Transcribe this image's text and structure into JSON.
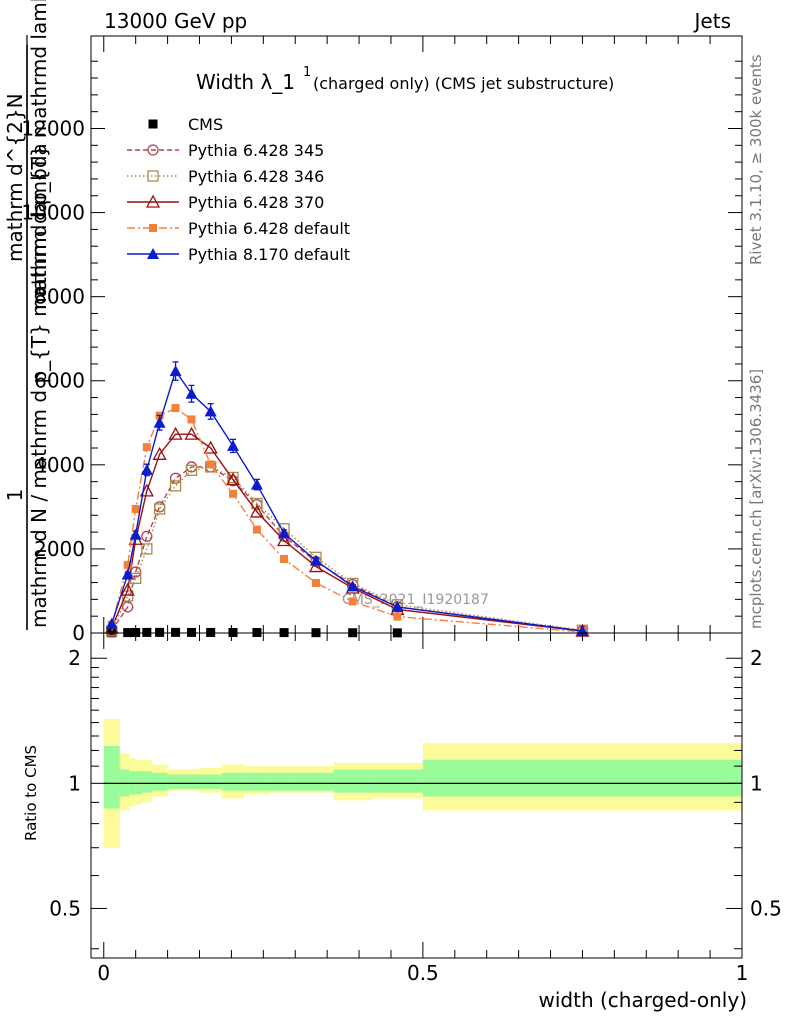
{
  "header": {
    "left": "13000 GeV pp",
    "right": "Jets"
  },
  "side": {
    "rivet": "Rivet 3.1.10, ≥ 300k events",
    "mcplots": "mcplots.cern.ch [arXiv:1306.3436]"
  },
  "ylabel_main": {
    "one": "1",
    "den": "mathrm d N / mathrm d p_{T} mathrmd lambda",
    "num": "mathrm d^{2}N",
    "num2": "mathrm d p_{T} mathrmd lambda"
  },
  "colors": {
    "cms": "#000000",
    "py345": "#b5424a",
    "py346": "#a88b4e",
    "py370": "#9b0d10",
    "pydef": "#f4803a",
    "py8": "#0a1ccc",
    "band_inner": "#99fb99",
    "band_outer": "#fbfb99"
  },
  "chart_data": [
    {
      "type": "line",
      "title": "Width λ_1",
      "title_sup": "1",
      "title_suffix": "(charged only) (CMS jet substructure)",
      "watermark": "CMS_2021_I1920187",
      "xlim": [
        -0.02,
        1.0
      ],
      "ylim": [
        0,
        14200
      ],
      "ticks_y": [
        0,
        2000,
        4000,
        6000,
        8000,
        10000,
        12000
      ],
      "ticks_y_labels": [
        "0",
        "2000",
        "4000",
        "6000",
        "8000",
        "10000",
        "12000"
      ],
      "series": [
        {
          "name": "CMS",
          "key": "cms",
          "marker": "square-filled",
          "line": "none",
          "x": [
            0.0125,
            0.0375,
            0.05,
            0.0675,
            0.0875,
            0.1125,
            0.1375,
            0.1675,
            0.2025,
            0.24,
            0.2825,
            0.3325,
            0.39,
            0.46
          ],
          "y": [
            5,
            10,
            12,
            14,
            15,
            15,
            14,
            13,
            12,
            11,
            10,
            8,
            6,
            3
          ]
        },
        {
          "name": "Pythia 6.428 345",
          "key": "py345",
          "marker": "circle-open",
          "line": "dashed",
          "x": [
            0.0125,
            0.0375,
            0.05,
            0.0675,
            0.0875,
            0.1125,
            0.1375,
            0.1675,
            0.2025,
            0.24,
            0.2825,
            0.3325,
            0.39,
            0.46,
            0.75
          ],
          "y": [
            60,
            620,
            1450,
            2300,
            3000,
            3680,
            3950,
            3950,
            3620,
            3050,
            2300,
            1700,
            1150,
            620,
            55
          ]
        },
        {
          "name": "Pythia 6.428 346",
          "key": "py346",
          "marker": "square-open",
          "line": "dotted",
          "x": [
            0.0125,
            0.0375,
            0.05,
            0.0675,
            0.0875,
            0.1125,
            0.1375,
            0.1675,
            0.2025,
            0.24,
            0.2825,
            0.3325,
            0.39,
            0.46,
            0.75
          ],
          "y": [
            50,
            880,
            1300,
            2000,
            2950,
            3500,
            3870,
            3950,
            3700,
            3080,
            2480,
            1800,
            1180,
            670,
            65
          ]
        },
        {
          "name": "Pythia 6.428 370",
          "key": "py370",
          "marker": "triangle-open",
          "line": "solid",
          "x": [
            0.0125,
            0.0375,
            0.05,
            0.0675,
            0.0875,
            0.1125,
            0.1375,
            0.1675,
            0.2025,
            0.24,
            0.2825,
            0.3325,
            0.39,
            0.46,
            0.75
          ],
          "y": [
            120,
            1020,
            2230,
            3380,
            4250,
            4730,
            4730,
            4400,
            3650,
            2880,
            2200,
            1580,
            1070,
            560,
            45
          ]
        },
        {
          "name": "Pythia 6.428 default",
          "key": "pydef",
          "marker": "square-filled-small",
          "line": "dashdot",
          "x": [
            0.0125,
            0.0375,
            0.05,
            0.0675,
            0.0875,
            0.1125,
            0.1375,
            0.1675,
            0.2025,
            0.24,
            0.2825,
            0.3325,
            0.39,
            0.46,
            0.75
          ],
          "y": [
            200,
            1620,
            2950,
            4420,
            5170,
            5350,
            5080,
            4010,
            3310,
            2460,
            1760,
            1190,
            750,
            390,
            25
          ]
        },
        {
          "name": "Pythia 8.170 default",
          "key": "py8",
          "marker": "triangle-filled",
          "line": "solid",
          "x": [
            0.0125,
            0.0375,
            0.05,
            0.0675,
            0.0875,
            0.1125,
            0.1375,
            0.1675,
            0.2025,
            0.24,
            0.2825,
            0.3325,
            0.39,
            0.46,
            0.75
          ],
          "y": [
            220,
            1390,
            2340,
            3880,
            5000,
            6230,
            5690,
            5270,
            4450,
            3530,
            2370,
            1720,
            1110,
            620,
            45
          ]
        }
      ]
    },
    {
      "type": "area",
      "ylabel": "Ratio to CMS",
      "xlabel": "width (charged-only)",
      "xlim": [
        -0.02,
        1.0
      ],
      "ylim": [
        0.38,
        2.3
      ],
      "ticks_x": [
        0,
        0.5,
        1
      ],
      "ticks_x_labels": [
        "0",
        "0.5",
        "1"
      ],
      "ticks_y": [
        0.5,
        1,
        2
      ],
      "ticks_y_labels": [
        "0.5",
        "1",
        "2"
      ],
      "bins": [
        0.0,
        0.025,
        0.04,
        0.05,
        0.06,
        0.075,
        0.1,
        0.125,
        0.15,
        0.185,
        0.22,
        0.26,
        0.3,
        0.36,
        0.42,
        0.5,
        1.0
      ],
      "band_outer": [
        [
          0.7,
          1.43
        ],
        [
          0.86,
          1.18
        ],
        [
          0.88,
          1.15
        ],
        [
          0.89,
          1.14
        ],
        [
          0.9,
          1.14
        ],
        [
          0.93,
          1.11
        ],
        [
          0.96,
          1.08
        ],
        [
          0.96,
          1.08
        ],
        [
          0.95,
          1.09
        ],
        [
          0.92,
          1.11
        ],
        [
          0.94,
          1.1
        ],
        [
          0.95,
          1.1
        ],
        [
          0.95,
          1.1
        ],
        [
          0.91,
          1.12
        ],
        [
          0.92,
          1.12
        ],
        [
          0.86,
          1.25
        ]
      ],
      "band_inner": [
        [
          0.87,
          1.23
        ],
        [
          0.93,
          1.08
        ],
        [
          0.94,
          1.07
        ],
        [
          0.94,
          1.07
        ],
        [
          0.95,
          1.07
        ],
        [
          0.96,
          1.06
        ],
        [
          0.97,
          1.05
        ],
        [
          0.97,
          1.05
        ],
        [
          0.97,
          1.05
        ],
        [
          0.96,
          1.06
        ],
        [
          0.96,
          1.06
        ],
        [
          0.96,
          1.06
        ],
        [
          0.96,
          1.06
        ],
        [
          0.95,
          1.08
        ],
        [
          0.95,
          1.08
        ],
        [
          0.93,
          1.14
        ]
      ]
    }
  ]
}
